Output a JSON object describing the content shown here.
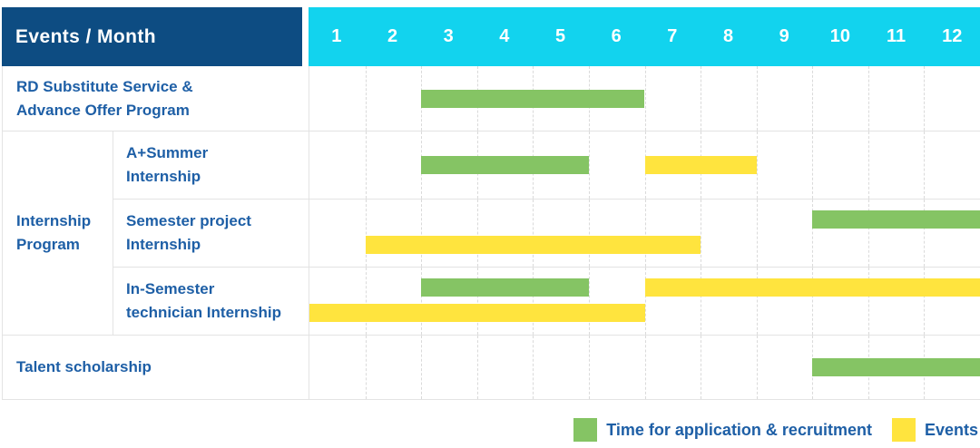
{
  "header": {
    "corner": "Events / Month",
    "months": [
      "1",
      "2",
      "3",
      "4",
      "5",
      "6",
      "7",
      "8",
      "9",
      "10",
      "11",
      "12"
    ]
  },
  "colors": {
    "application": "#85c464",
    "event": "#ffe43e",
    "header_bg": "#0d4c82",
    "months_bg": "#12d3ee",
    "label_text": "#1e5fa6"
  },
  "rows": {
    "rd": {
      "label": "RD Substitute Service &\nAdvance Offer Program",
      "bars": [
        {
          "type": "application",
          "start": 3,
          "end": 6,
          "lane": "single"
        }
      ]
    },
    "group_label": "Internship\nProgram",
    "a_summer": {
      "label": "A+Summer\nInternship",
      "bars": [
        {
          "type": "application",
          "start": 3,
          "end": 5,
          "lane": "single"
        },
        {
          "type": "event",
          "start": 7,
          "end": 8,
          "lane": "single"
        }
      ]
    },
    "semester_project": {
      "label": "Semester project\nInternship",
      "bars": [
        {
          "type": "application",
          "start": 10,
          "end": 12,
          "lane": "top"
        },
        {
          "type": "event",
          "start": 2,
          "end": 7,
          "lane": "bottom"
        }
      ]
    },
    "in_semester": {
      "label": "In-Semester\ntechnician Internship",
      "bars": [
        {
          "type": "application",
          "start": 3,
          "end": 5,
          "lane": "top"
        },
        {
          "type": "event",
          "start": 7,
          "end": 12,
          "lane": "top"
        },
        {
          "type": "event",
          "start": 1,
          "end": 6,
          "lane": "bottom"
        }
      ]
    },
    "talent": {
      "label": "Talent scholarship",
      "bars": [
        {
          "type": "application",
          "start": 10,
          "end": 12,
          "lane": "single"
        }
      ]
    }
  },
  "legend": {
    "items": [
      {
        "type": "application",
        "label": "Time for application & recruitment"
      },
      {
        "type": "event",
        "label": "Events"
      }
    ]
  },
  "chart_data": {
    "type": "bar",
    "subtype": "gantt-timeline",
    "title": "Events / Month",
    "xlabel": "Month",
    "x_ticks": [
      1,
      2,
      3,
      4,
      5,
      6,
      7,
      8,
      9,
      10,
      11,
      12
    ],
    "xlim": [
      1,
      12
    ],
    "grid": "vertical-dashed",
    "legend_position": "bottom-right",
    "legend": [
      "Time for application & recruitment",
      "Events"
    ],
    "rows": [
      {
        "category": "RD Substitute Service & Advance Offer Program",
        "group": null,
        "segments": [
          {
            "kind": "Time for application & recruitment",
            "start_month": 3,
            "end_month": 6
          }
        ]
      },
      {
        "category": "A+Summer Internship",
        "group": "Internship Program",
        "segments": [
          {
            "kind": "Time for application & recruitment",
            "start_month": 3,
            "end_month": 5
          },
          {
            "kind": "Events",
            "start_month": 7,
            "end_month": 8
          }
        ]
      },
      {
        "category": "Semester project Internship",
        "group": "Internship Program",
        "segments": [
          {
            "kind": "Time for application & recruitment",
            "start_month": 10,
            "end_month": 12
          },
          {
            "kind": "Events",
            "start_month": 2,
            "end_month": 7
          }
        ]
      },
      {
        "category": "In-Semester technician Internship",
        "group": "Internship Program",
        "segments": [
          {
            "kind": "Time for application & recruitment",
            "start_month": 3,
            "end_month": 5
          },
          {
            "kind": "Events",
            "start_month": 7,
            "end_month": 12
          },
          {
            "kind": "Events",
            "start_month": 1,
            "end_month": 6
          }
        ]
      },
      {
        "category": "Talent scholarship",
        "group": null,
        "segments": [
          {
            "kind": "Time for application & recruitment",
            "start_month": 10,
            "end_month": 12
          }
        ]
      }
    ]
  }
}
